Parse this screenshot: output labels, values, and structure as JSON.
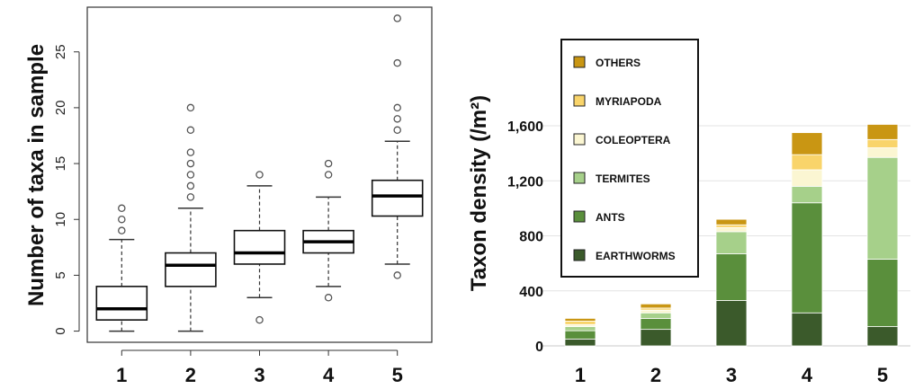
{
  "chart_data": [
    {
      "type": "box",
      "ylabel": "Number of taxa in sample",
      "categories": [
        "1",
        "2",
        "3",
        "4",
        "5"
      ],
      "y_ticks": [
        "0",
        "5",
        "10",
        "15",
        "20",
        "25"
      ],
      "ylim": [
        -1,
        29
      ],
      "grid": false,
      "boxes": [
        {
          "category": "1",
          "whisker_low": 0,
          "q1": 1,
          "median": 2,
          "q3": 4,
          "whisker_high": 8.2,
          "outliers": [
            9,
            10,
            11
          ]
        },
        {
          "category": "2",
          "whisker_low": 0,
          "q1": 4,
          "median": 5.9,
          "q3": 7,
          "whisker_high": 11,
          "outliers": [
            12,
            13,
            14,
            15,
            16,
            18,
            20
          ]
        },
        {
          "category": "3",
          "whisker_low": 3,
          "q1": 6,
          "median": 7,
          "q3": 9,
          "whisker_high": 13,
          "outliers": [
            1,
            14
          ]
        },
        {
          "category": "4",
          "whisker_low": 4,
          "q1": 7,
          "median": 8,
          "q3": 9,
          "whisker_high": 12,
          "outliers": [
            3,
            14,
            15
          ]
        },
        {
          "category": "5",
          "whisker_low": 6,
          "q1": 10.3,
          "median": 12.1,
          "q3": 13.5,
          "whisker_high": 17,
          "outliers": [
            5,
            18,
            19,
            20,
            24,
            28
          ]
        }
      ]
    },
    {
      "type": "bar",
      "stacked": true,
      "ylabel": "Taxon density (/m²)",
      "categories": [
        "1",
        "2",
        "3",
        "4",
        "5"
      ],
      "y_ticks": [
        "0",
        "400",
        "800",
        "1,200",
        "1,600"
      ],
      "ylim": [
        0,
        1700
      ],
      "grid": true,
      "legend_position": "top-left",
      "series": [
        {
          "name": "EARTHWORMS",
          "color": "#3b5a2b",
          "values": [
            50,
            120,
            330,
            240,
            140
          ]
        },
        {
          "name": "ANTS",
          "color": "#5a8f3c",
          "values": [
            60,
            80,
            340,
            800,
            490
          ]
        },
        {
          "name": "TERMITES",
          "color": "#a6d08a",
          "values": [
            30,
            40,
            160,
            120,
            740
          ]
        },
        {
          "name": "COLEOPTERA",
          "color": "#fbf6d2",
          "values": [
            15,
            20,
            30,
            120,
            70
          ]
        },
        {
          "name": "MYRIAPODA",
          "color": "#f9d46a",
          "values": [
            25,
            15,
            20,
            110,
            60
          ]
        },
        {
          "name": "OTHERS",
          "color": "#c99613",
          "values": [
            20,
            30,
            40,
            160,
            110
          ]
        }
      ]
    }
  ]
}
